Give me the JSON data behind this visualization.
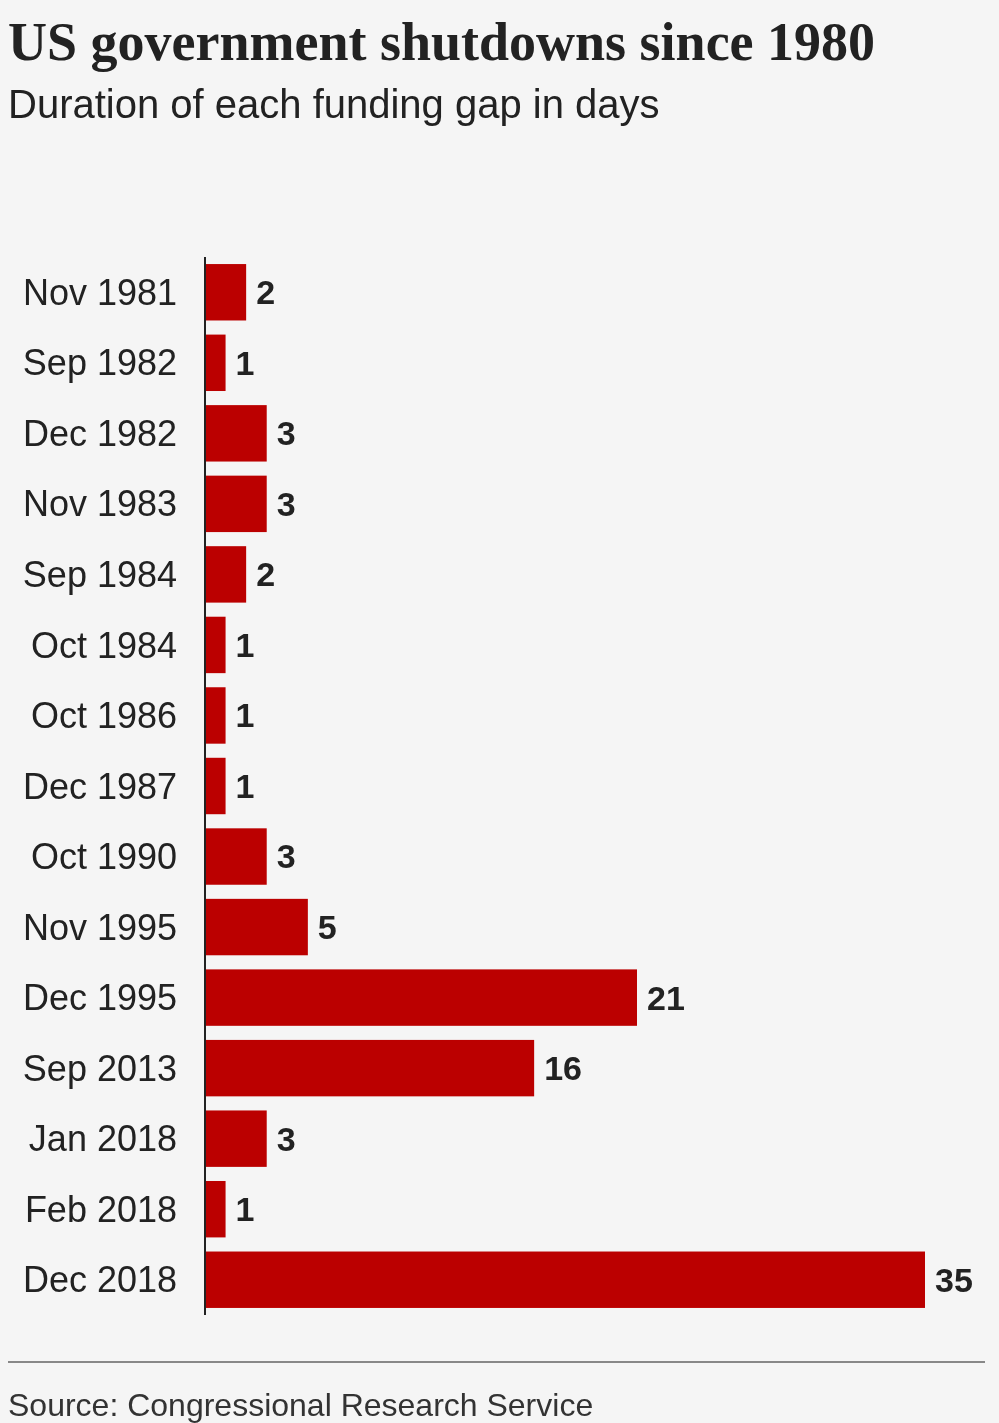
{
  "chart_data": {
    "type": "bar",
    "orientation": "horizontal",
    "title": "US government shutdowns since 1980",
    "subtitle": "Duration of each funding gap in days",
    "categories": [
      "Nov 1981",
      "Sep 1982",
      "Dec 1982",
      "Nov 1983",
      "Sep 1984",
      "Oct 1984",
      "Oct 1986",
      "Dec 1987",
      "Oct 1990",
      "Nov 1995",
      "Dec 1995",
      "Sep 2013",
      "Jan 2018",
      "Feb 2018",
      "Dec 2018"
    ],
    "values": [
      2,
      1,
      3,
      3,
      2,
      1,
      1,
      1,
      3,
      5,
      21,
      16,
      3,
      1,
      35
    ],
    "color": "#bb0000",
    "data_labels": true,
    "grid": false,
    "annotations": [
      "Source: Congressional Research Service"
    ]
  }
}
